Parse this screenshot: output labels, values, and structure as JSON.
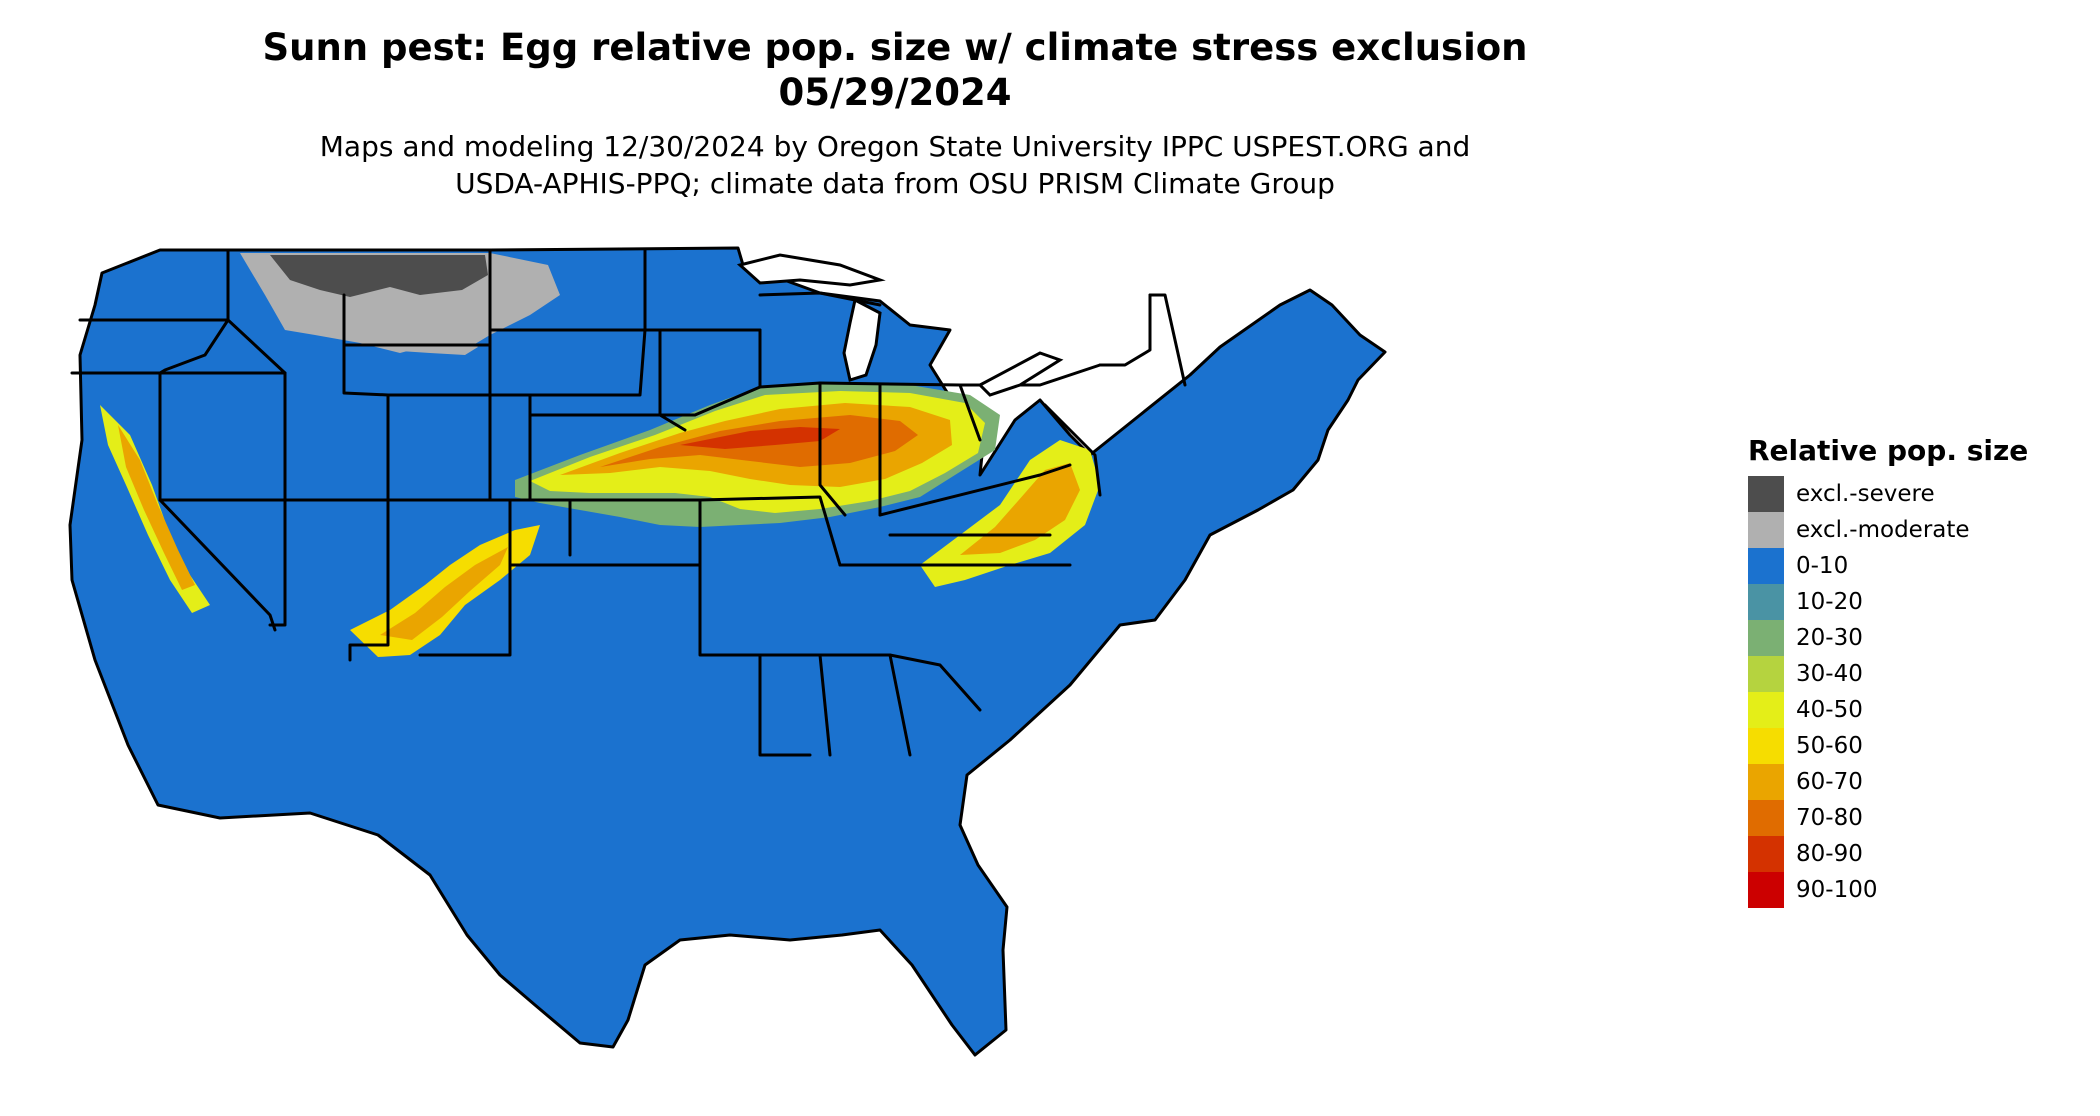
{
  "title": {
    "line1": "Sunn pest: Egg relative pop. size w/ climate stress exclusion",
    "line2": "05/29/2024"
  },
  "subtitle": {
    "line1": "Maps and modeling 12/30/2024 by Oregon State University IPPC USPEST.ORG and",
    "line2": "USDA-APHIS-PPQ; climate data from OSU PRISM Climate Group"
  },
  "legend": {
    "title": "Relative pop. size",
    "items": [
      {
        "label": "excl.-severe",
        "color": "#4d4d4d"
      },
      {
        "label": "excl.-moderate",
        "color": "#b0b0b0"
      },
      {
        "label": "0-10",
        "color": "#1b72cf"
      },
      {
        "label": "10-20",
        "color": "#4a93a4"
      },
      {
        "label": "20-30",
        "color": "#7bb073"
      },
      {
        "label": "30-40",
        "color": "#b5d33f"
      },
      {
        "label": "40-50",
        "color": "#e4ee18"
      },
      {
        "label": "50-60",
        "color": "#f6dd00"
      },
      {
        "label": "60-70",
        "color": "#eaa500"
      },
      {
        "label": "70-80",
        "color": "#e06c00"
      },
      {
        "label": "80-90",
        "color": "#d43200"
      },
      {
        "label": "90-100",
        "color": "#cc0000"
      }
    ]
  },
  "map": {
    "region": "contiguous-united-states",
    "base_color": "#1b72cf",
    "border_color": "#000000"
  }
}
